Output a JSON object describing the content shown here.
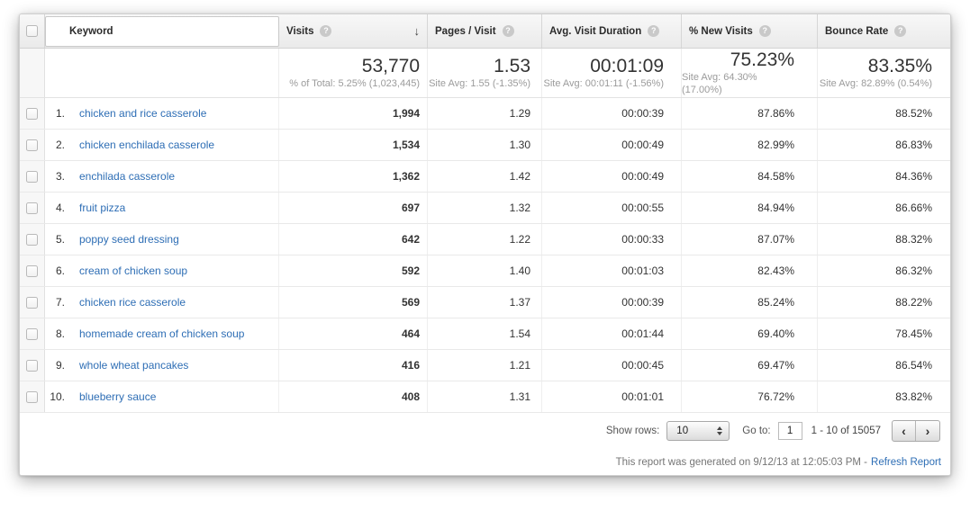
{
  "columns": {
    "keyword": "Keyword",
    "visits": "Visits",
    "pages_per_visit": "Pages / Visit",
    "avg_visit_duration": "Avg. Visit Duration",
    "pct_new_visits": "% New Visits",
    "bounce_rate": "Bounce Rate",
    "help_glyph": "?",
    "sort_desc_glyph": "↓"
  },
  "summary": {
    "visits": "53,770",
    "visits_sub": "% of Total: 5.25% (1,023,445)",
    "pages": "1.53",
    "pages_sub": "Site Avg: 1.55 (-1.35%)",
    "duration": "00:01:09",
    "duration_sub": "Site Avg: 00:01:11 (-1.56%)",
    "new_visits": "75.23%",
    "new_visits_sub": "Site Avg: 64.30% (17.00%)",
    "bounce": "83.35%",
    "bounce_sub": "Site Avg: 82.89% (0.54%)"
  },
  "rows": [
    {
      "rank": "1.",
      "keyword": "chicken and rice casserole",
      "visits": "1,994",
      "pages": "1.29",
      "duration": "00:00:39",
      "new_visits": "87.86%",
      "bounce": "88.52%"
    },
    {
      "rank": "2.",
      "keyword": "chicken enchilada casserole",
      "visits": "1,534",
      "pages": "1.30",
      "duration": "00:00:49",
      "new_visits": "82.99%",
      "bounce": "86.83%"
    },
    {
      "rank": "3.",
      "keyword": "enchilada casserole",
      "visits": "1,362",
      "pages": "1.42",
      "duration": "00:00:49",
      "new_visits": "84.58%",
      "bounce": "84.36%"
    },
    {
      "rank": "4.",
      "keyword": "fruit pizza",
      "visits": "697",
      "pages": "1.32",
      "duration": "00:00:55",
      "new_visits": "84.94%",
      "bounce": "86.66%"
    },
    {
      "rank": "5.",
      "keyword": "poppy seed dressing",
      "visits": "642",
      "pages": "1.22",
      "duration": "00:00:33",
      "new_visits": "87.07%",
      "bounce": "88.32%"
    },
    {
      "rank": "6.",
      "keyword": "cream of chicken soup",
      "visits": "592",
      "pages": "1.40",
      "duration": "00:01:03",
      "new_visits": "82.43%",
      "bounce": "86.32%"
    },
    {
      "rank": "7.",
      "keyword": "chicken rice casserole",
      "visits": "569",
      "pages": "1.37",
      "duration": "00:00:39",
      "new_visits": "85.24%",
      "bounce": "88.22%"
    },
    {
      "rank": "8.",
      "keyword": "homemade cream of chicken soup",
      "visits": "464",
      "pages": "1.54",
      "duration": "00:01:44",
      "new_visits": "69.40%",
      "bounce": "78.45%"
    },
    {
      "rank": "9.",
      "keyword": "whole wheat pancakes",
      "visits": "416",
      "pages": "1.21",
      "duration": "00:00:45",
      "new_visits": "69.47%",
      "bounce": "86.54%"
    },
    {
      "rank": "10.",
      "keyword": "blueberry sauce",
      "visits": "408",
      "pages": "1.31",
      "duration": "00:01:01",
      "new_visits": "76.72%",
      "bounce": "83.82%"
    }
  ],
  "footer": {
    "show_rows_label": "Show rows:",
    "show_rows_value": "10",
    "goto_label": "Go to:",
    "goto_value": "1",
    "range": "1 - 10 of 15057",
    "prev": "‹",
    "next": "›"
  },
  "note": {
    "text": "This report was generated on 9/12/13 at 12:05:03 PM -",
    "link": "Refresh Report"
  },
  "colors": {
    "link_blue": "#2E6EB5",
    "header_text": "#2B2B2B",
    "muted_gray": "#9B9B9B",
    "checkbox_column_bg": "#F7F7F7"
  }
}
